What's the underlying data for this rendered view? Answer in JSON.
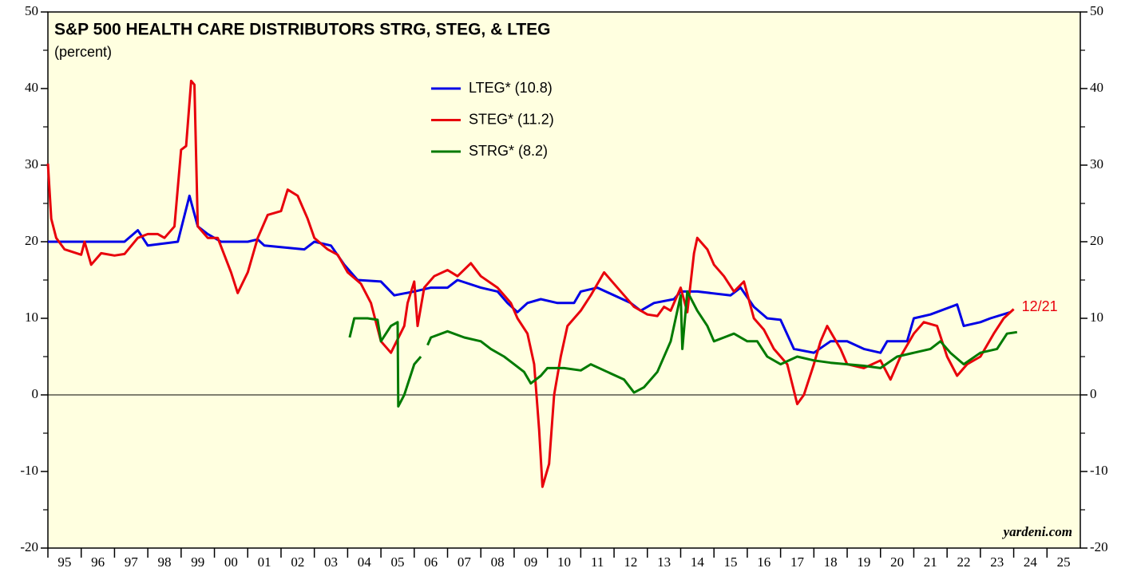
{
  "chart_data": {
    "type": "line",
    "title": "S&P 500 HEALTH CARE DISTRIBUTORS STRG, STEG, & LTEG",
    "subtitle": "(percent)",
    "source": "yardeni.com",
    "annotation": "12/21",
    "annotation_color": "#e8000b",
    "xlim": [
      1995,
      2026
    ],
    "xticks": [
      {
        "value": 1995,
        "label": "95"
      },
      {
        "value": 1996,
        "label": "96"
      },
      {
        "value": 1997,
        "label": "97"
      },
      {
        "value": 1998,
        "label": "98"
      },
      {
        "value": 1999,
        "label": "99"
      },
      {
        "value": 2000,
        "label": "00"
      },
      {
        "value": 2001,
        "label": "01"
      },
      {
        "value": 2002,
        "label": "02"
      },
      {
        "value": 2003,
        "label": "03"
      },
      {
        "value": 2004,
        "label": "04"
      },
      {
        "value": 2005,
        "label": "05"
      },
      {
        "value": 2006,
        "label": "06"
      },
      {
        "value": 2007,
        "label": "07"
      },
      {
        "value": 2008,
        "label": "08"
      },
      {
        "value": 2009,
        "label": "09"
      },
      {
        "value": 2010,
        "label": "10"
      },
      {
        "value": 2011,
        "label": "11"
      },
      {
        "value": 2012,
        "label": "12"
      },
      {
        "value": 2013,
        "label": "13"
      },
      {
        "value": 2014,
        "label": "14"
      },
      {
        "value": 2015,
        "label": "15"
      },
      {
        "value": 2016,
        "label": "16"
      },
      {
        "value": 2017,
        "label": "17"
      },
      {
        "value": 2018,
        "label": "18"
      },
      {
        "value": 2019,
        "label": "19"
      },
      {
        "value": 2020,
        "label": "20"
      },
      {
        "value": 2021,
        "label": "21"
      },
      {
        "value": 2022,
        "label": "22"
      },
      {
        "value": 2023,
        "label": "23"
      },
      {
        "value": 2024,
        "label": "24"
      },
      {
        "value": 2025,
        "label": "25"
      }
    ],
    "ylim": [
      -20,
      50
    ],
    "yticks": [
      -20,
      -10,
      0,
      10,
      20,
      30,
      40,
      50
    ],
    "yminorticks": [
      -15,
      -5,
      5,
      15,
      25,
      35,
      45
    ],
    "y2lim": [
      -20,
      50
    ],
    "y2ticks": [
      -20,
      -10,
      0,
      10,
      20,
      30,
      40,
      50
    ],
    "zero_line": true,
    "background": "#ffffe0",
    "series": [
      {
        "name": "LTEG* (10.8)",
        "color": "#0000e6",
        "x": [
          1995.0,
          1997.3,
          1997.7,
          1998.0,
          1998.9,
          1999.25,
          1999.5,
          1999.8,
          2000.2,
          2001.0,
          2001.3,
          2001.5,
          2002.7,
          2003.0,
          2003.5,
          2003.9,
          2004.3,
          2005.0,
          2005.4,
          2006.0,
          2006.5,
          2007.0,
          2007.3,
          2008.0,
          2008.5,
          2008.8,
          2009.1,
          2009.4,
          2009.8,
          2010.3,
          2010.8,
          2011.0,
          2011.5,
          2012.5,
          2012.8,
          2013.2,
          2013.8,
          2014.0,
          2014.5,
          2015.5,
          2015.8,
          2016.2,
          2016.6,
          2017.0,
          2017.4,
          2018.0,
          2018.5,
          2019.0,
          2019.5,
          2020.0,
          2020.2,
          2020.8,
          2021.0,
          2021.5,
          2022.3,
          2022.5,
          2023.0,
          2023.3,
          2023.9
        ],
        "values": [
          20,
          20,
          21.5,
          19.5,
          20,
          26,
          22,
          21,
          20,
          20,
          20.3,
          19.5,
          19,
          20,
          19.5,
          17,
          15,
          14.8,
          13,
          13.5,
          14,
          14,
          15,
          14,
          13.5,
          12,
          10.8,
          12,
          12.5,
          12,
          12,
          13.5,
          14,
          12,
          11,
          12,
          12.5,
          13.5,
          13.5,
          13,
          14,
          11.5,
          10,
          9.8,
          6,
          5.5,
          7,
          7,
          6,
          5.5,
          7,
          7,
          10,
          10.5,
          11.8,
          9,
          9.5,
          10,
          10.8
        ]
      },
      {
        "name": "STEG* (11.2)",
        "color": "#e8000b",
        "x": [
          1995.0,
          1995.1,
          1995.25,
          1995.5,
          1996.0,
          1996.1,
          1996.3,
          1996.6,
          1997.0,
          1997.3,
          1997.7,
          1998.0,
          1998.3,
          1998.5,
          1998.8,
          1999.0,
          1999.15,
          1999.3,
          1999.4,
          1999.5,
          1999.8,
          2000.1,
          2000.5,
          2000.7,
          2001.0,
          2001.3,
          2001.6,
          2002.0,
          2002.2,
          2002.5,
          2002.8,
          2003.0,
          2003.4,
          2003.7,
          2004.0,
          2004.4,
          2004.7,
          2005.0,
          2005.3,
          2005.7,
          2005.8,
          2006.0,
          2006.1,
          2006.3,
          2006.6,
          2007.0,
          2007.3,
          2007.7,
          2008.0,
          2008.5,
          2008.9,
          2009.1,
          2009.4,
          2009.6,
          2009.75,
          2009.85,
          2010.05,
          2010.2,
          2010.4,
          2010.6,
          2011.0,
          2011.3,
          2011.7,
          2012.0,
          2012.3,
          2012.6,
          2013.0,
          2013.3,
          2013.5,
          2013.7,
          2014.0,
          2014.2,
          2014.4,
          2014.5,
          2014.8,
          2015.0,
          2015.3,
          2015.6,
          2015.9,
          2016.2,
          2016.5,
          2016.8,
          2017.2,
          2017.5,
          2017.7,
          2018.0,
          2018.2,
          2018.4,
          2018.8,
          2019.0,
          2019.5,
          2020.0,
          2020.3,
          2020.6,
          2021.0,
          2021.3,
          2021.7,
          2022.0,
          2022.3,
          2022.6,
          2023.0,
          2023.4,
          2023.7,
          2024.0
        ],
        "values": [
          30.2,
          23,
          20.5,
          19,
          18.3,
          20,
          17,
          18.5,
          18.2,
          18.4,
          20.5,
          21,
          21,
          20.5,
          22,
          32,
          32.5,
          41,
          40.5,
          22,
          20.5,
          20.5,
          16,
          13.3,
          16,
          20.5,
          23.5,
          24,
          26.8,
          26,
          23,
          20.5,
          19,
          18.3,
          16,
          14.5,
          12,
          7,
          5.5,
          9,
          12,
          14.8,
          9,
          14,
          15.5,
          16.3,
          15.5,
          17.2,
          15.5,
          14,
          12,
          10,
          8,
          4,
          -4.5,
          -12,
          -9,
          0,
          5,
          9,
          11,
          13,
          16,
          14.5,
          13,
          11.5,
          10.5,
          10.3,
          11.5,
          11,
          14,
          10.8,
          18.5,
          20.5,
          19,
          17,
          15.5,
          13.5,
          14.8,
          10,
          8.5,
          6,
          4,
          -1.2,
          0,
          4,
          7,
          9,
          6,
          4,
          3.5,
          4.5,
          2,
          5,
          8,
          9.5,
          9,
          5,
          2.5,
          4,
          5,
          8,
          10,
          11.2
        ]
      },
      {
        "name": "STRG* (8.2)",
        "color": "#007a00",
        "x": [
          2004.06,
          2004.2,
          2004.6,
          2004.9,
          2005.0,
          2005.3,
          2005.5,
          2005.52,
          2005.7,
          2006.0,
          2006.2,
          2006.3,
          2006.4,
          2006.5,
          2007.0,
          2007.5,
          2008.0,
          2008.3,
          2008.7,
          2009.0,
          2009.3,
          2009.5,
          2009.8,
          2010.0,
          2010.5,
          2011.0,
          2011.3,
          2011.8,
          2012.3,
          2012.6,
          2012.9,
          2013.3,
          2013.7,
          2014.0,
          2014.05,
          2014.2,
          2014.5,
          2014.8,
          2015.0,
          2015.3,
          2015.6,
          2016.0,
          2016.3,
          2016.6,
          2017.0,
          2017.5,
          2018.0,
          2018.5,
          2019.0,
          2019.5,
          2020.0,
          2020.5,
          2021.0,
          2021.5,
          2021.8,
          2022.1,
          2022.5,
          2023.0,
          2023.5,
          2023.8,
          2024.1
        ],
        "values": [
          7.5,
          10,
          10,
          9.8,
          7,
          9,
          9.5,
          -1.5,
          0,
          4,
          5,
          null,
          6.5,
          7.5,
          8.3,
          7.5,
          7,
          6,
          5,
          4,
          3,
          1.5,
          2.5,
          3.5,
          3.5,
          3.2,
          4,
          3,
          2,
          0.3,
          1,
          3,
          7,
          13,
          6,
          13.5,
          11,
          9,
          7,
          7.5,
          8,
          7,
          7,
          5,
          4,
          5,
          4.5,
          4.2,
          4,
          3.8,
          3.5,
          5,
          5.5,
          6,
          7,
          5.5,
          4,
          5.5,
          6,
          8,
          8.2
        ]
      }
    ]
  }
}
